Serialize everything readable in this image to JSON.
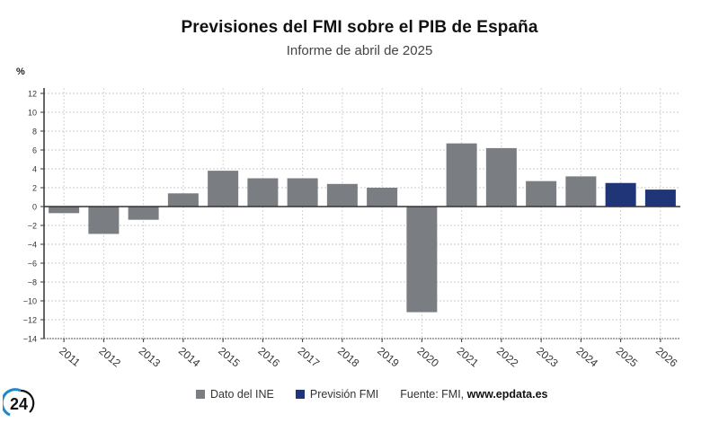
{
  "header": {
    "title": "Previsiones del FMI sobre el PIB de España",
    "subtitle": "Informe de abril de 2025",
    "unit": "%"
  },
  "legend": {
    "items": [
      {
        "label": "Dato del INE",
        "color": "#7a7e82"
      },
      {
        "label": "Previsión FMI",
        "color": "#1f3578"
      }
    ],
    "source_prefix": "Fuente: FMI, ",
    "source_link": "www.epdata.es"
  },
  "logo": {
    "text": "24",
    "icon": "channel-24-logo"
  },
  "chart_data": {
    "type": "bar",
    "title": "Previsiones del FMI sobre el PIB de España",
    "subtitle": "Informe de abril de 2025",
    "xlabel": "",
    "ylabel": "%",
    "ylim": [
      -14,
      12
    ],
    "yticks": [
      -14,
      -12,
      -10,
      -8,
      -6,
      -4,
      -2,
      0,
      2,
      4,
      6,
      8,
      10,
      12
    ],
    "grid": true,
    "legend_position": "bottom",
    "categories": [
      "2011",
      "2012",
      "2013",
      "2014",
      "2015",
      "2016",
      "2017",
      "2018",
      "2019",
      "2020",
      "2021",
      "2022",
      "2023",
      "2024",
      "2025",
      "2026"
    ],
    "values": [
      -0.7,
      -2.9,
      -1.4,
      1.4,
      3.8,
      3.0,
      3.0,
      2.4,
      2.0,
      -11.2,
      6.7,
      6.2,
      2.7,
      3.2,
      2.5,
      1.8
    ],
    "series_of_bar": [
      "Dato del INE",
      "Dato del INE",
      "Dato del INE",
      "Dato del INE",
      "Dato del INE",
      "Dato del INE",
      "Dato del INE",
      "Dato del INE",
      "Dato del INE",
      "Dato del INE",
      "Dato del INE",
      "Dato del INE",
      "Dato del INE",
      "Dato del INE",
      "Previsión FMI",
      "Previsión FMI"
    ]
  }
}
